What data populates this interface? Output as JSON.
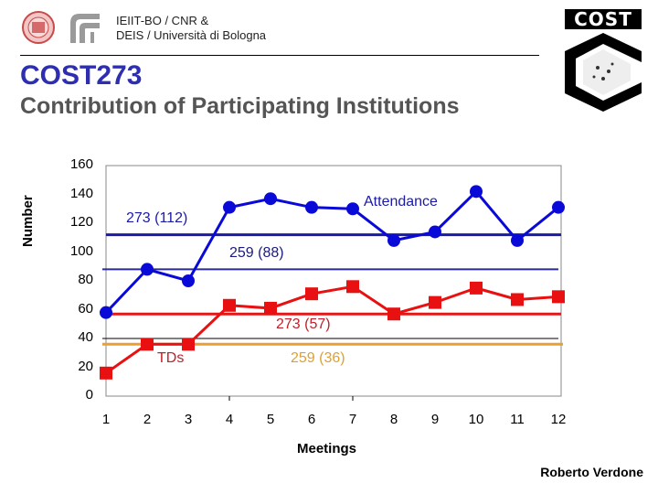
{
  "header": {
    "line1": "IEIIT-BO / CNR  &",
    "line2": "DEIS / Università di Bologna",
    "logos": [
      "university-of-bologna-seal-icon",
      "cnr-logo-icon",
      "cost-logo-icon"
    ],
    "cost_logo_text": "COST"
  },
  "title": {
    "main": "COST273",
    "sub": "Contribution of Participating Institutions"
  },
  "footer": {
    "author": "Roberto Verdone"
  },
  "colors": {
    "title_blue": "#2e2eb0",
    "attendance": "#0a0ad8",
    "attendance_avg_273": "#1a1aa8",
    "attendance_avg_259": "#2c2c90",
    "tds": "#e81010",
    "tds_avg_273": "#e01818",
    "tds_avg_259": "#e8a030",
    "annotation_red": "#c0202a",
    "annotation_orange": "#e0a030"
  },
  "chart_data": {
    "type": "line",
    "title": "",
    "xlabel": "Meetings",
    "ylabel": "Number",
    "x": [
      1,
      2,
      3,
      4,
      5,
      6,
      7,
      8,
      9,
      10,
      11,
      12
    ],
    "xticks": [
      "1",
      "2",
      "3",
      "4",
      "5",
      "6",
      "7",
      "8",
      "9",
      "10",
      "11",
      "12"
    ],
    "yticks": [
      "0",
      "20",
      "40",
      "60",
      "80",
      "100",
      "120",
      "140",
      "160"
    ],
    "ylim": [
      0,
      160
    ],
    "grid": false,
    "series": [
      {
        "name": "Attendance",
        "marker": "circle",
        "values": [
          58,
          88,
          80,
          131,
          137,
          131,
          130,
          108,
          114,
          142,
          108,
          131
        ]
      },
      {
        "name": "TDs",
        "marker": "square",
        "values": [
          16,
          36,
          36,
          63,
          61,
          71,
          76,
          57,
          65,
          75,
          67,
          69
        ]
      }
    ],
    "reference_lines": [
      {
        "label": "273 (112)",
        "value": 112,
        "series": "Attendance"
      },
      {
        "label": "259 (88)",
        "value": 88,
        "series": "Attendance"
      },
      {
        "label": "273 (57)",
        "value": 57,
        "series": "TDs"
      },
      {
        "label": "259 (36)",
        "value": 36,
        "series": "TDs"
      },
      {
        "label": "",
        "value": 40,
        "series": "gridline"
      }
    ],
    "annotations": [
      "Attendance",
      "TDs",
      "273 (112)",
      "259 (88)",
      "273 (57)",
      "259 (36)"
    ]
  }
}
